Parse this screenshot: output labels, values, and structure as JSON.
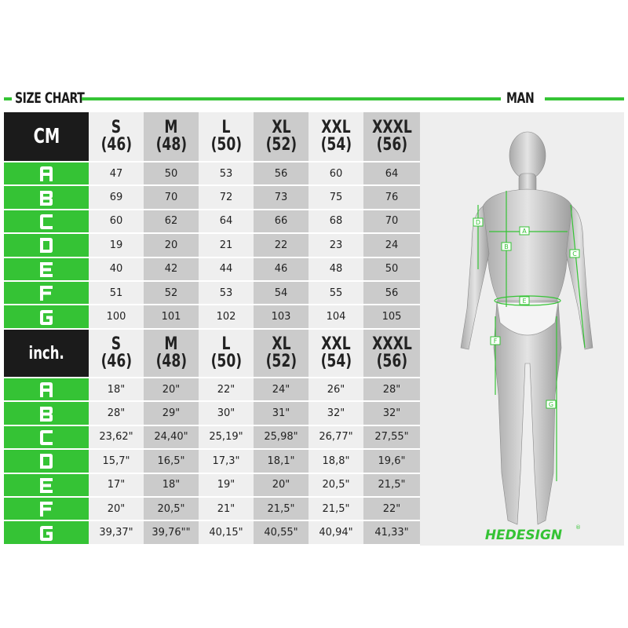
{
  "header": {
    "title": "SIZE CHART",
    "gender": "MAN"
  },
  "sizes": [
    {
      "label": "S",
      "eu": "(46)"
    },
    {
      "label": "M",
      "eu": "(48)"
    },
    {
      "label": "L",
      "eu": "(50)"
    },
    {
      "label": "XL",
      "eu": "(52)"
    },
    {
      "label": "XXL",
      "eu": "(54)"
    },
    {
      "label": "XXXL",
      "eu": "(56)"
    }
  ],
  "tables": [
    {
      "unit": "CM",
      "rows": [
        {
          "key": "A",
          "values": [
            "47",
            "50",
            "53",
            "56",
            "60",
            "64"
          ]
        },
        {
          "key": "B",
          "values": [
            "69",
            "70",
            "72",
            "73",
            "75",
            "76"
          ]
        },
        {
          "key": "C",
          "values": [
            "60",
            "62",
            "64",
            "66",
            "68",
            "70"
          ]
        },
        {
          "key": "D",
          "values": [
            "19",
            "20",
            "21",
            "22",
            "23",
            "24"
          ]
        },
        {
          "key": "E",
          "values": [
            "40",
            "42",
            "44",
            "46",
            "48",
            "50"
          ]
        },
        {
          "key": "F",
          "values": [
            "51",
            "52",
            "53",
            "54",
            "55",
            "56"
          ]
        },
        {
          "key": "G",
          "values": [
            "100",
            "101",
            "102",
            "103",
            "104",
            "105"
          ]
        }
      ]
    },
    {
      "unit": "inch.",
      "rows": [
        {
          "key": "A",
          "values": [
            "18\"",
            "20\"",
            "22\"",
            "24\"",
            "26\"",
            "28\""
          ]
        },
        {
          "key": "B",
          "values": [
            "28\"",
            "29\"",
            "30\"",
            "31\"",
            "32\"",
            "32\""
          ]
        },
        {
          "key": "C",
          "values": [
            "23,62\"",
            "24,40\"",
            "25,19\"",
            "25,98\"",
            "26,77\"",
            "27,55\""
          ]
        },
        {
          "key": "D",
          "values": [
            "15,7\"",
            "16,5\"",
            "17,3\"",
            "18,1\"",
            "18,8\"",
            "19,6\""
          ]
        },
        {
          "key": "E",
          "values": [
            "17\"",
            "18\"",
            "19\"",
            "20\"",
            "20,5\"",
            "21,5\""
          ]
        },
        {
          "key": "F",
          "values": [
            "20\"",
            "20,5\"",
            "21\"",
            "21,5\"",
            "21,5\"",
            "22\""
          ]
        },
        {
          "key": "G",
          "values": [
            "39,37\"",
            "39,76\"\"",
            "40,15\"",
            "40,55\"",
            "40,94\"",
            "41,33\""
          ]
        }
      ]
    }
  ],
  "figure": {
    "markers": [
      "A",
      "B",
      "C",
      "D",
      "E",
      "F",
      "G"
    ]
  },
  "logo": {
    "text": "HEDESIGN",
    "mark": "®"
  },
  "colors": {
    "accent": "#35c335",
    "header_bg": "#1b1b1b",
    "col_light": "#efefef",
    "col_dark": "#cbcbcb"
  }
}
